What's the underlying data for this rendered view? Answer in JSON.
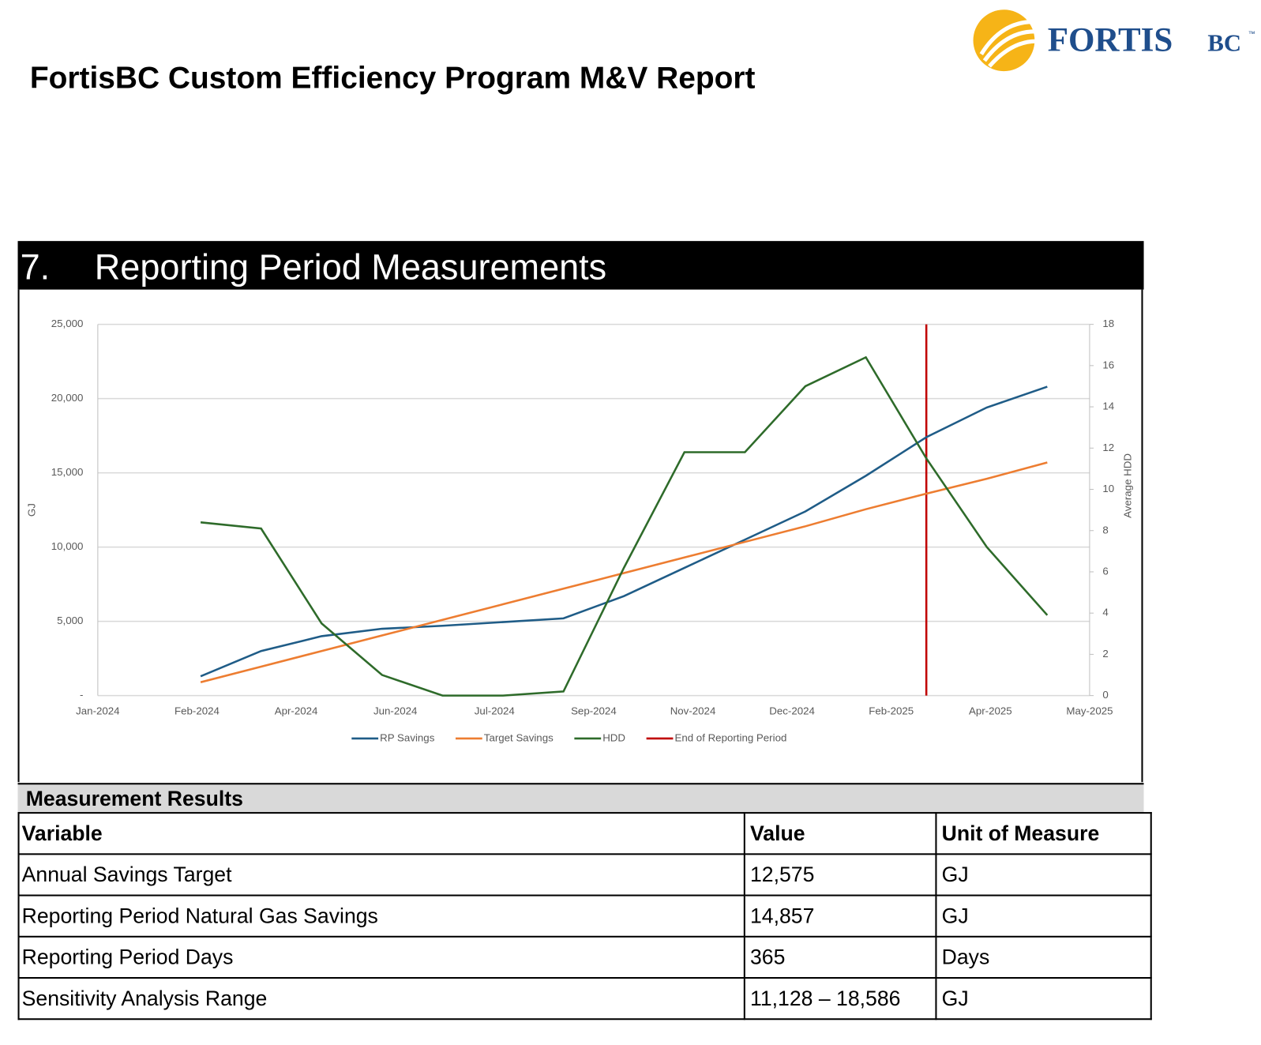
{
  "header": {
    "title": "FortisBC Custom Efficiency Program M&V Report",
    "logo": {
      "name": "FORTIS",
      "suffix": "BC",
      "mark": "™"
    }
  },
  "section": {
    "number": "7.",
    "title": "Reporting Period Measurements"
  },
  "chart_data": {
    "type": "line",
    "x": [
      "Feb-2024",
      "Mar-2024",
      "Apr-2024",
      "May-2024",
      "Jun-2024",
      "Jul-2024",
      "Aug-2024",
      "Sep-2024",
      "Oct-2024",
      "Nov-2024",
      "Dec-2024",
      "Jan-2025",
      "Feb-2025",
      "Mar-2025",
      "Apr-2025"
    ],
    "xticks": [
      "Jan-2024",
      "Feb-2024",
      "Apr-2024",
      "Jun-2024",
      "Jul-2024",
      "Sep-2024",
      "Nov-2024",
      "Dec-2024",
      "Feb-2025",
      "Apr-2025",
      "May-2025"
    ],
    "y_label": "GJ",
    "y2_label": "Average HDD",
    "ylim": [
      0,
      25000
    ],
    "yticks": [
      {
        "value": 0,
        "label": "-"
      },
      {
        "value": 5000,
        "label": "5,000"
      },
      {
        "value": 10000,
        "label": "10,000"
      },
      {
        "value": 15000,
        "label": "15,000"
      },
      {
        "value": 20000,
        "label": "20,000"
      },
      {
        "value": 25000,
        "label": "25,000"
      }
    ],
    "y2lim": [
      0,
      18
    ],
    "y2ticks": [
      0,
      2,
      4,
      6,
      8,
      10,
      12,
      14,
      16,
      18
    ],
    "grid": true,
    "series": [
      {
        "name": "RP Savings",
        "color": "#1f5c87",
        "values": [
          1300,
          3000,
          4000,
          4500,
          4700,
          4950,
          5200,
          6700,
          8600,
          10500,
          12400,
          14800,
          17400,
          19400,
          20800
        ]
      },
      {
        "name": "Target Savings",
        "color": "#ed7d31",
        "values": [
          900,
          1950,
          3000,
          4050,
          5100,
          6150,
          7200,
          8250,
          9300,
          10350,
          11400,
          12550,
          13600,
          14600,
          15700
        ]
      },
      {
        "name": "HDD",
        "color": "#2e6b2a",
        "axis": "y2",
        "values": [
          8.4,
          8.1,
          3.5,
          1.0,
          0,
          0,
          0.2,
          6.2,
          11.8,
          11.8,
          15.0,
          16.4,
          11.5,
          7.2,
          3.9
        ]
      }
    ],
    "reference_line": {
      "name": "End of Reporting Period",
      "color": "#c00000",
      "x": "Feb-2025"
    }
  },
  "table": {
    "caption": "Measurement Results",
    "header": [
      "Variable",
      "Value",
      "Unit of Measure"
    ],
    "rows": [
      [
        "Annual Savings Target",
        "12,575",
        "GJ"
      ],
      [
        "Reporting Period Natural Gas Savings",
        "14,857",
        "GJ"
      ],
      [
        "Reporting Period Days",
        "365",
        "Days"
      ],
      [
        "Sensitivity Analysis Range",
        "11,128 – 18,586",
        "GJ"
      ]
    ]
  }
}
